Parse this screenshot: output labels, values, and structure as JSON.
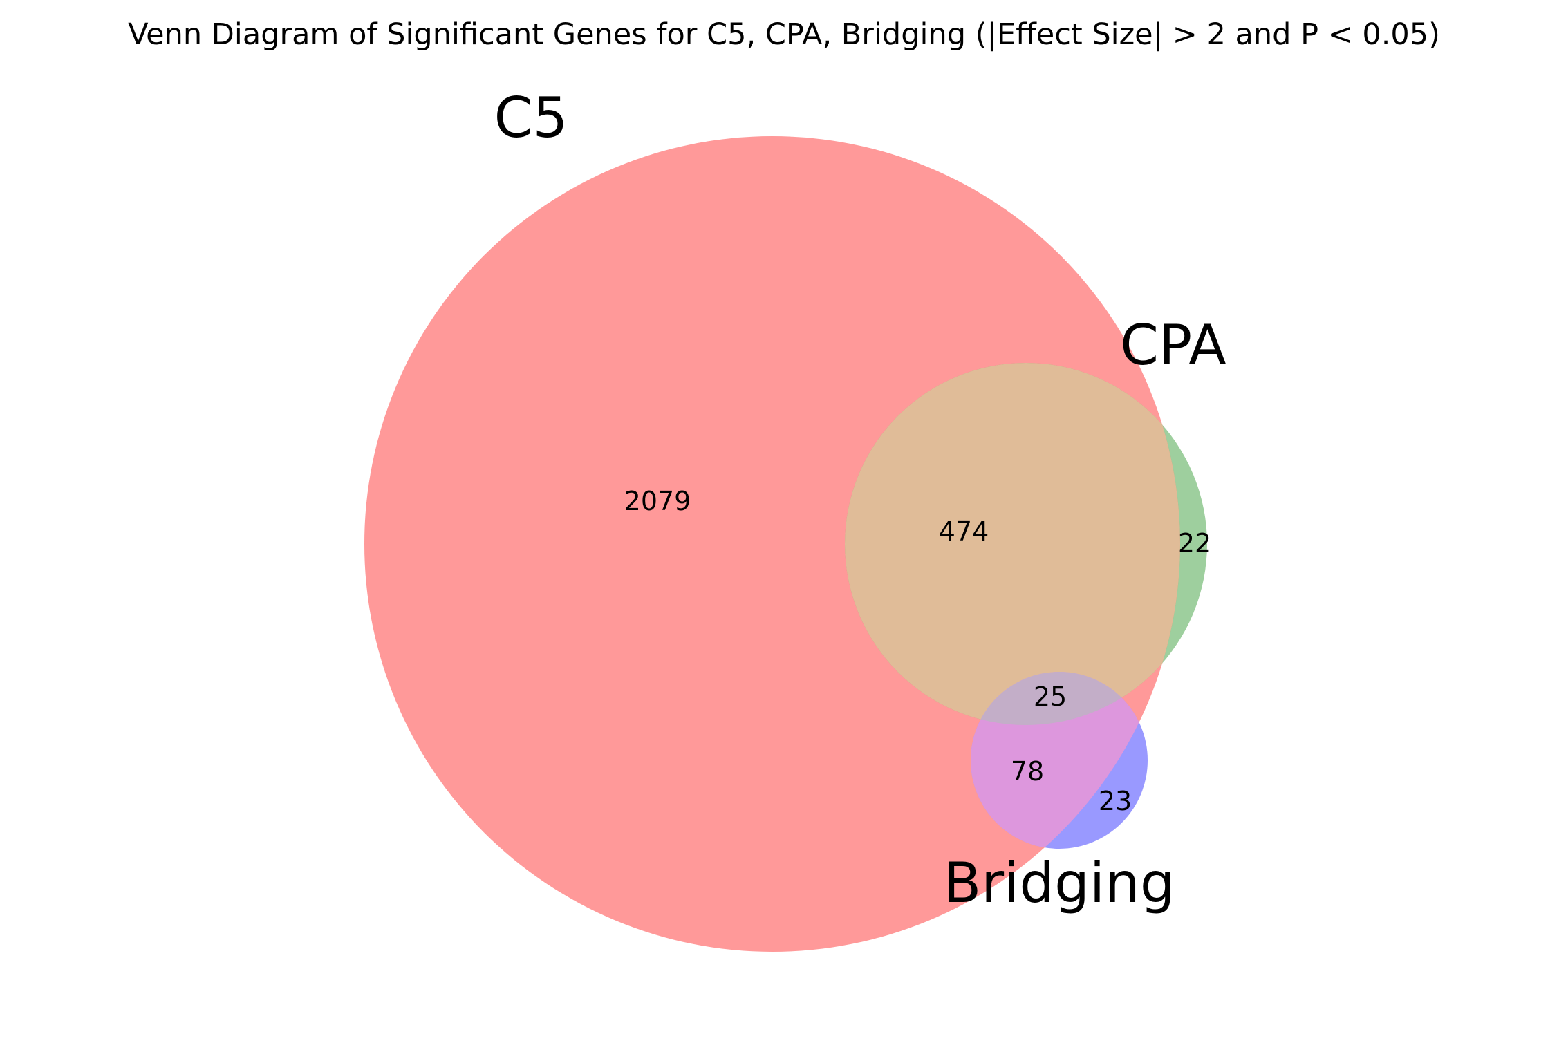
{
  "title": "Venn Diagram of Significant Genes for C5, CPA, Bridging (|Effect Size| > 2 and P < 0.05)",
  "sets": [
    {
      "key": "c5",
      "name": "C5",
      "color": "#ff9999",
      "opacity": 1.0
    },
    {
      "key": "cpa",
      "name": "CPA",
      "color": "#4fa84f",
      "opacity": 0.55
    },
    {
      "key": "bridging",
      "name": "Bridging",
      "color": "#9999ff",
      "opacity": 1.0
    }
  ],
  "overlap_colors": {
    "c5_cpa": "#e0bc98",
    "c5_bridging": "#dd97dd",
    "c5_cpa_bridging": "#c3aec8"
  },
  "regions": {
    "c5_only": "2079",
    "c5_cpa": "474",
    "cpa_only": "22",
    "c5_cpa_bridging": "25",
    "c5_bridging": "78",
    "bridging_only": "23"
  }
}
